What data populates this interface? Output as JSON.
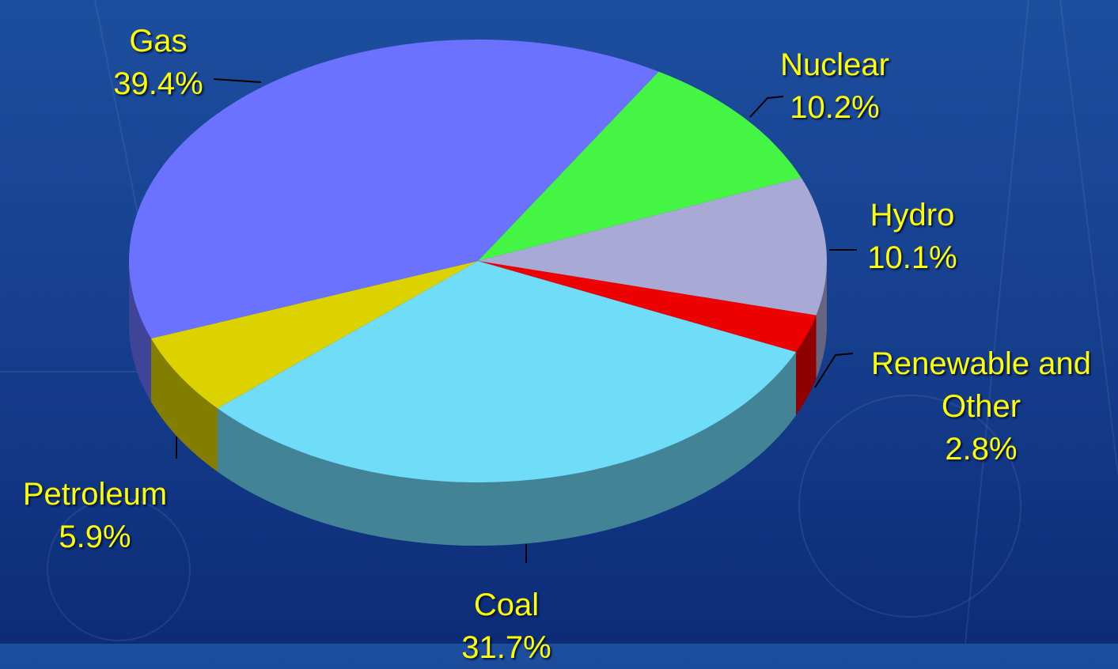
{
  "chart_data": {
    "type": "pie",
    "categories": [
      "Nuclear",
      "Hydro",
      "Renewable and Other",
      "Coal",
      "Petroleum",
      "Gas"
    ],
    "values": [
      10.2,
      10.1,
      2.8,
      31.7,
      5.9,
      39.4
    ],
    "value_labels": [
      "10.2%",
      "10.1%",
      "2.8%",
      "31.7%",
      "5.9%",
      "39.4%"
    ],
    "colors": [
      "#44f544",
      "#a9a9d6",
      "#ee0000",
      "#6fdcf8",
      "#dcd200",
      "#6a72ff"
    ]
  }
}
